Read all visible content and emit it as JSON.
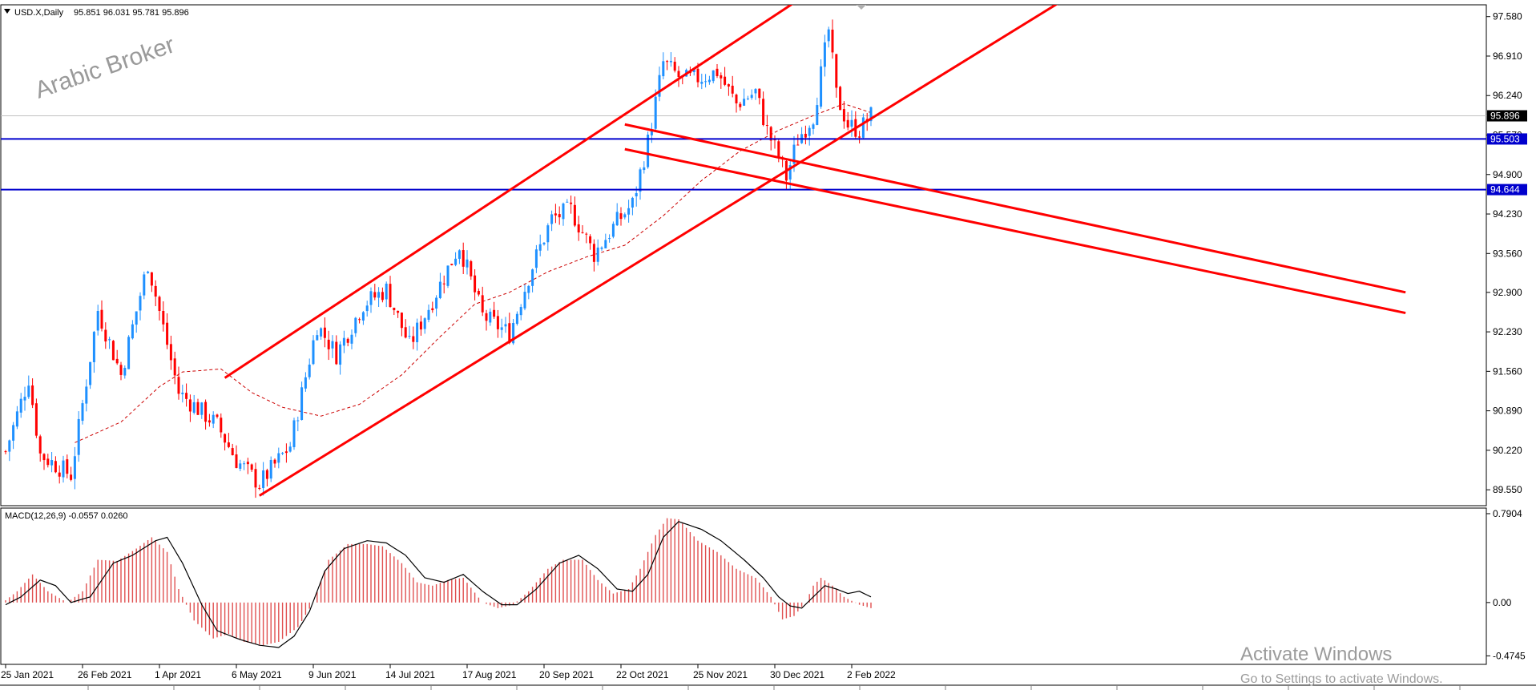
{
  "window": {
    "title": "USD.X,Daily",
    "ohlc": "95.851 96.031 95.781 95.896"
  },
  "watermark": "Arabic Broker",
  "activation": {
    "line1": "Activate Windows",
    "line2": "Go to Settings to activate Windows."
  },
  "colors": {
    "bull": "#1e90ff",
    "bear": "#ff0000",
    "trend": "#ff0000",
    "level": "#0000cd",
    "ma": "#cc0000",
    "macd_hist": "#e05050",
    "macd_signal": "#000000",
    "price_tag": "#000000",
    "level_tag": "#0000cd"
  },
  "chart_data": {
    "type": "candlestick",
    "symbol": "USD.X",
    "timeframe": "Daily",
    "price_axis": {
      "ticks": [
        97.58,
        96.91,
        96.24,
        95.57,
        94.9,
        94.23,
        93.56,
        92.9,
        92.23,
        91.56,
        90.89,
        90.22,
        89.55
      ],
      "tick_labels": [
        "97.580",
        "96.910",
        "96.240",
        "95.570",
        "94.900",
        "94.230",
        "93.560",
        "92.900",
        "92.230",
        "91.560",
        "90.890",
        "90.220",
        "89.550"
      ],
      "range": [
        89.28,
        97.78
      ]
    },
    "date_labels": [
      "25 Jan 2021",
      "26 Feb 2021",
      "1 Apr 2021",
      "6 May 2021",
      "9 Jun 2021",
      "14 Jul 2021",
      "17 Aug 2021",
      "20 Sep 2021",
      "22 Oct 2021",
      "25 Nov 2021",
      "30 Dec 2021",
      "2 Feb 2022"
    ],
    "current_price": {
      "value": 95.896,
      "label": "95.896"
    },
    "horizontal_levels": [
      {
        "value": 95.503,
        "label": "95.503"
      },
      {
        "value": 94.644,
        "label": "94.644"
      }
    ],
    "trendlines_bar_price": [
      {
        "from": [
          57,
          91.45
        ],
        "to": [
          207,
          97.9
        ]
      },
      {
        "from": [
          66,
          89.45
        ],
        "to": [
          276,
          97.9
        ]
      },
      {
        "from": [
          161,
          95.75
        ],
        "to": [
          364,
          92.9
        ]
      },
      {
        "from": [
          161,
          95.33
        ],
        "to": [
          364,
          92.55
        ]
      }
    ],
    "ohlc_anchors": [
      [
        0,
        90.2
      ],
      [
        6,
        91.45
      ],
      [
        9,
        90.15
      ],
      [
        17,
        89.8
      ],
      [
        24,
        92.6
      ],
      [
        30,
        91.5
      ],
      [
        37,
        93.4
      ],
      [
        45,
        91.2
      ],
      [
        55,
        90.65
      ],
      [
        60,
        90.05
      ],
      [
        66,
        89.65
      ],
      [
        74,
        90.3
      ],
      [
        81,
        92.35
      ],
      [
        86,
        91.85
      ],
      [
        93,
        92.7
      ],
      [
        99,
        92.95
      ],
      [
        105,
        92.0
      ],
      [
        112,
        92.9
      ],
      [
        118,
        93.7
      ],
      [
        124,
        92.5
      ],
      [
        131,
        92.2
      ],
      [
        137,
        93.35
      ],
      [
        142,
        94.15
      ],
      [
        147,
        94.3
      ],
      [
        153,
        93.55
      ],
      [
        159,
        94.1
      ],
      [
        163,
        94.4
      ],
      [
        167,
        95.45
      ],
      [
        171,
        96.8
      ],
      [
        176,
        96.5
      ],
      [
        181,
        96.55
      ],
      [
        185,
        96.65
      ],
      [
        190,
        96.1
      ],
      [
        195,
        96.3
      ],
      [
        198,
        95.65
      ],
      [
        201,
        95.2
      ],
      [
        203,
        94.85
      ],
      [
        206,
        95.5
      ],
      [
        210,
        95.9
      ],
      [
        212,
        96.6
      ],
      [
        214,
        97.35
      ],
      [
        216,
        96.25
      ],
      [
        219,
        95.75
      ],
      [
        222,
        95.65
      ],
      [
        225,
        95.9
      ]
    ],
    "moving_average_anchors": [
      [
        18,
        90.35
      ],
      [
        30,
        90.7
      ],
      [
        40,
        91.3
      ],
      [
        46,
        91.55
      ],
      [
        56,
        91.6
      ],
      [
        64,
        91.2
      ],
      [
        72,
        90.95
      ],
      [
        82,
        90.8
      ],
      [
        92,
        91.0
      ],
      [
        103,
        91.5
      ],
      [
        113,
        92.15
      ],
      [
        122,
        92.7
      ],
      [
        131,
        92.9
      ],
      [
        141,
        93.25
      ],
      [
        151,
        93.5
      ],
      [
        161,
        93.7
      ],
      [
        171,
        94.2
      ],
      [
        181,
        94.8
      ],
      [
        191,
        95.3
      ],
      [
        201,
        95.65
      ],
      [
        210,
        95.9
      ],
      [
        218,
        96.1
      ],
      [
        225,
        95.95
      ]
    ],
    "macd": {
      "label": "MACD(12,26,9) -0.0557 0.0260",
      "fast": 12,
      "slow": 26,
      "signal": 9,
      "main_value": -0.0557,
      "signal_value": 0.026,
      "ticks": [
        0.7904,
        0.0,
        -0.4745
      ],
      "tick_labels": [
        "0.7904",
        "0.00",
        "-0.4745"
      ],
      "range": [
        -0.55,
        0.84
      ],
      "histogram_anchors": [
        [
          0,
          0.02
        ],
        [
          3,
          0.1
        ],
        [
          7,
          0.25
        ],
        [
          11,
          0.1
        ],
        [
          16,
          0.0
        ],
        [
          20,
          0.1
        ],
        [
          24,
          0.38
        ],
        [
          29,
          0.37
        ],
        [
          34,
          0.48
        ],
        [
          38,
          0.58
        ],
        [
          42,
          0.45
        ],
        [
          45,
          0.12
        ],
        [
          49,
          -0.16
        ],
        [
          54,
          -0.32
        ],
        [
          58,
          -0.28
        ],
        [
          62,
          -0.35
        ],
        [
          67,
          -0.38
        ],
        [
          71,
          -0.35
        ],
        [
          76,
          -0.22
        ],
        [
          80,
          0.0
        ],
        [
          84,
          0.38
        ],
        [
          89,
          0.52
        ],
        [
          94,
          0.52
        ],
        [
          98,
          0.5
        ],
        [
          103,
          0.35
        ],
        [
          107,
          0.18
        ],
        [
          111,
          0.15
        ],
        [
          115,
          0.2
        ],
        [
          119,
          0.22
        ],
        [
          124,
          0.0
        ],
        [
          128,
          -0.05
        ],
        [
          132,
          -0.02
        ],
        [
          136,
          0.1
        ],
        [
          141,
          0.3
        ],
        [
          145,
          0.38
        ],
        [
          150,
          0.38
        ],
        [
          154,
          0.2
        ],
        [
          158,
          0.08
        ],
        [
          162,
          0.12
        ],
        [
          165,
          0.3
        ],
        [
          169,
          0.6
        ],
        [
          172,
          0.75
        ],
        [
          175,
          0.74
        ],
        [
          180,
          0.55
        ],
        [
          185,
          0.45
        ],
        [
          190,
          0.3
        ],
        [
          195,
          0.22
        ],
        [
          199,
          0.05
        ],
        [
          202,
          -0.15
        ],
        [
          205,
          -0.12
        ],
        [
          208,
          0.0
        ],
        [
          210,
          0.15
        ],
        [
          212,
          0.22
        ],
        [
          215,
          0.15
        ],
        [
          218,
          0.05
        ],
        [
          222,
          -0.02
        ],
        [
          225,
          -0.05
        ]
      ],
      "signal_anchors": [
        [
          0,
          -0.02
        ],
        [
          4,
          0.05
        ],
        [
          9,
          0.2
        ],
        [
          13,
          0.15
        ],
        [
          17,
          0.0
        ],
        [
          22,
          0.05
        ],
        [
          28,
          0.35
        ],
        [
          33,
          0.42
        ],
        [
          39,
          0.55
        ],
        [
          42,
          0.58
        ],
        [
          46,
          0.35
        ],
        [
          51,
          -0.02
        ],
        [
          55,
          -0.25
        ],
        [
          61,
          -0.33
        ],
        [
          66,
          -0.38
        ],
        [
          71,
          -0.4
        ],
        [
          75,
          -0.3
        ],
        [
          79,
          -0.08
        ],
        [
          83,
          0.28
        ],
        [
          88,
          0.48
        ],
        [
          94,
          0.55
        ],
        [
          99,
          0.53
        ],
        [
          104,
          0.42
        ],
        [
          109,
          0.22
        ],
        [
          114,
          0.18
        ],
        [
          119,
          0.25
        ],
        [
          124,
          0.1
        ],
        [
          129,
          -0.02
        ],
        [
          133,
          -0.02
        ],
        [
          138,
          0.12
        ],
        [
          144,
          0.35
        ],
        [
          149,
          0.42
        ],
        [
          154,
          0.3
        ],
        [
          159,
          0.12
        ],
        [
          163,
          0.1
        ],
        [
          167,
          0.25
        ],
        [
          171,
          0.58
        ],
        [
          175,
          0.72
        ],
        [
          181,
          0.65
        ],
        [
          186,
          0.55
        ],
        [
          192,
          0.38
        ],
        [
          197,
          0.22
        ],
        [
          201,
          0.05
        ],
        [
          204,
          -0.03
        ],
        [
          207,
          -0.05
        ],
        [
          210,
          0.05
        ],
        [
          213,
          0.15
        ],
        [
          216,
          0.12
        ],
        [
          219,
          0.08
        ],
        [
          222,
          0.1
        ],
        [
          225,
          0.05
        ]
      ]
    }
  }
}
